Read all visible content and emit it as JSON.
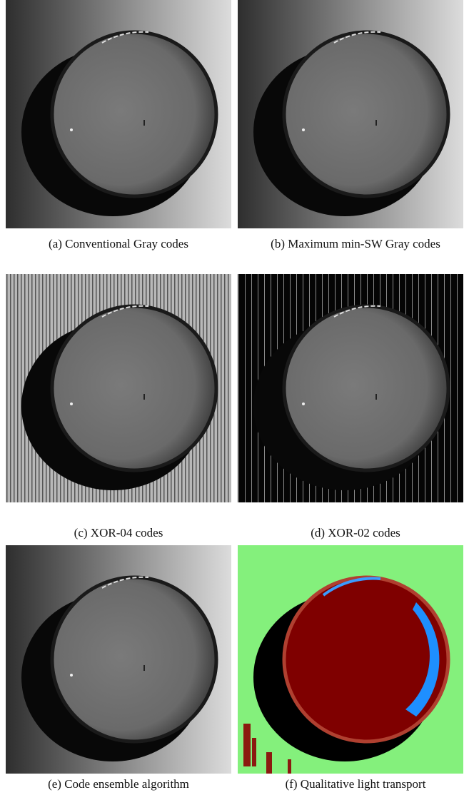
{
  "panels": [
    {
      "label": "(a)",
      "caption": "Conventional Gray codes"
    },
    {
      "label": "(b)",
      "caption": "Maximum min-SW Gray codes"
    },
    {
      "label": "(c)",
      "caption": "XOR-04 codes"
    },
    {
      "label": "(d)",
      "caption": "XOR-02 codes"
    },
    {
      "label": "(e)",
      "caption": "Code ensemble algorithm"
    },
    {
      "label": "(f)",
      "caption": "Qualitative light transport"
    }
  ]
}
